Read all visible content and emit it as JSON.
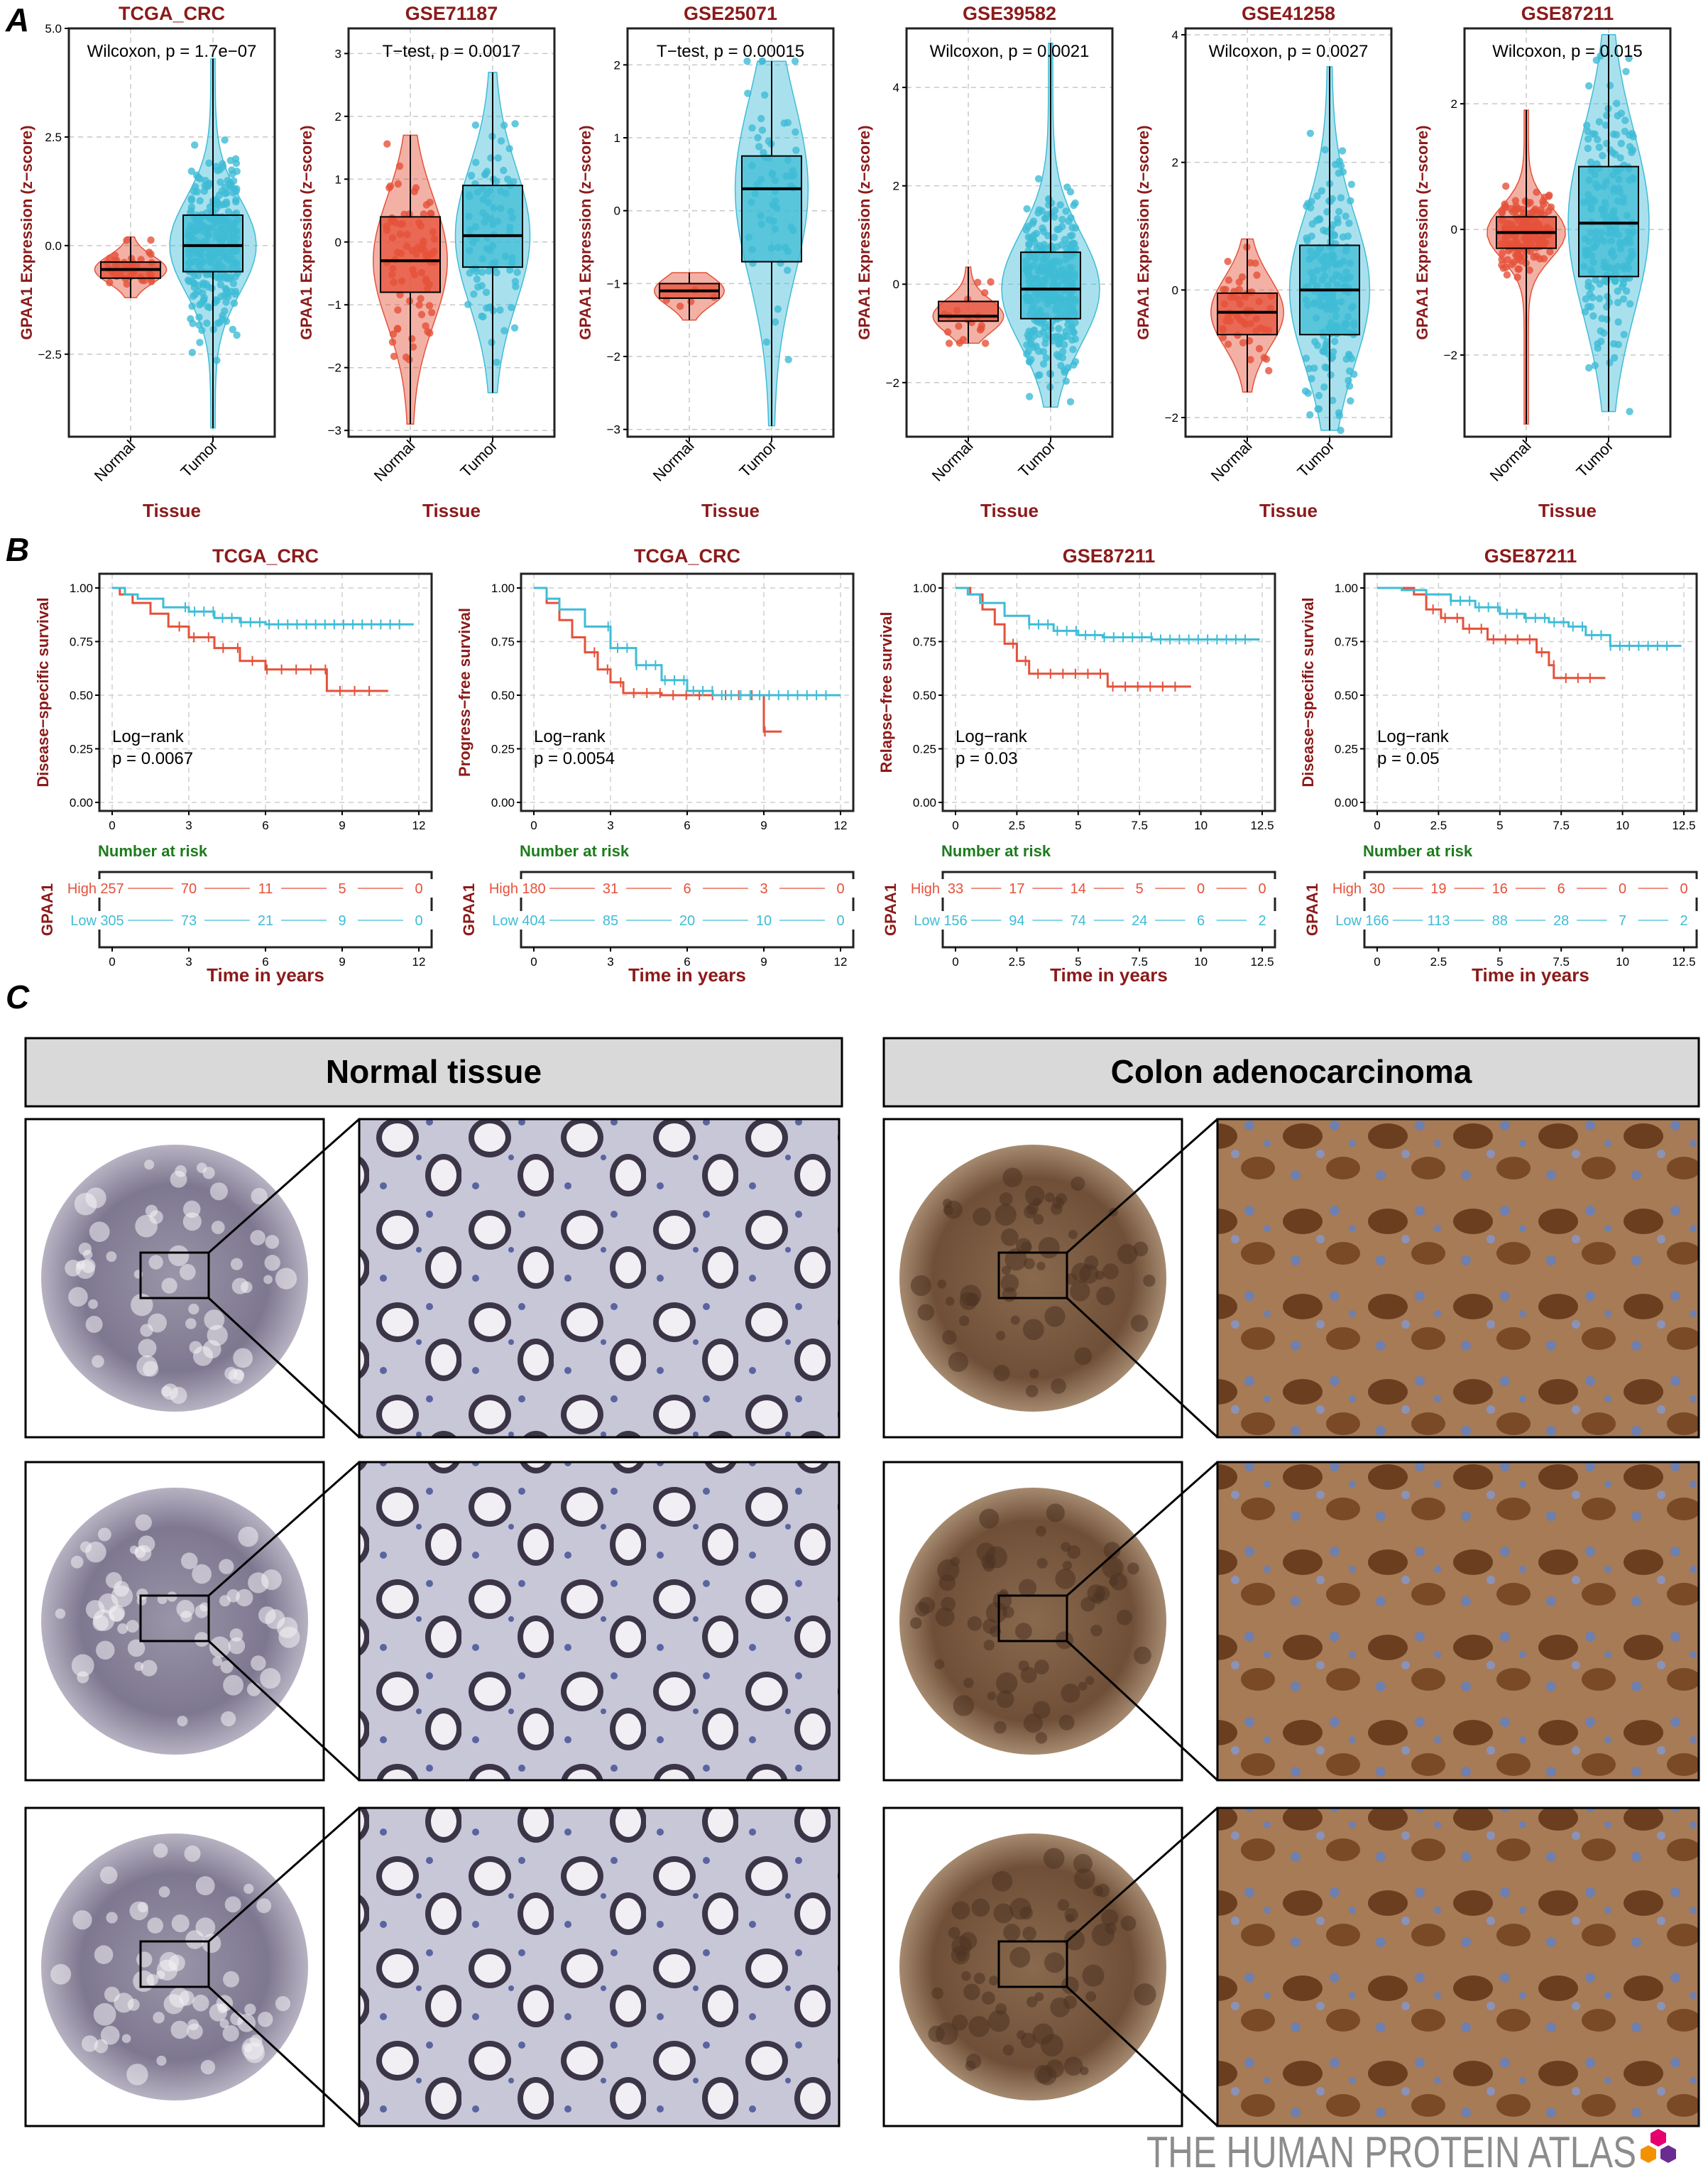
{
  "panel_labels": [
    "A",
    "B",
    "C"
  ],
  "colors": {
    "normal": "#e5513a",
    "tumor": "#3fbcd6",
    "high": "#e5513a",
    "low": "#3fbcd6",
    "title": "#8b1a1a",
    "risk": "#1e7b1e"
  },
  "chart_data": [
    {
      "type": "scatter",
      "subtype": "violin-box-jitter",
      "title": "TCGA_CRC",
      "test_label": "Wilcoxon, p = 1.7e−07",
      "xlabel": "Tissue",
      "ylabel": "GPAA1 Expression (z−score)",
      "categories": [
        "Normal",
        "Tumor"
      ],
      "ylim": [
        -4.4,
        5.0
      ],
      "yticks": [
        5.0,
        2.5,
        0.0,
        -2.5
      ],
      "ytick_labels": [
        "5.0",
        "2.5",
        "0.0",
        "−2.5"
      ],
      "groups": [
        {
          "name": "Normal",
          "median": -0.55,
          "q1": -0.75,
          "q3": -0.38,
          "min": -1.2,
          "max": 0.2,
          "n": 40
        },
        {
          "name": "Tumor",
          "median": 0.0,
          "q1": -0.6,
          "q3": 0.7,
          "min": -4.2,
          "max": 4.3,
          "n": 300
        }
      ]
    },
    {
      "type": "scatter",
      "subtype": "violin-box-jitter",
      "title": "GSE71187",
      "test_label": "T−test, p = 0.0017",
      "xlabel": "Tissue",
      "ylabel": "GPAA1 Expression (z−score)",
      "categories": [
        "Normal",
        "Tumor"
      ],
      "ylim": [
        -3.1,
        3.4
      ],
      "yticks": [
        3,
        2,
        1,
        0,
        -1,
        -2,
        -3
      ],
      "ytick_labels": [
        "3",
        "2",
        "1",
        "0",
        "−1",
        "−2",
        "−3"
      ],
      "groups": [
        {
          "name": "Normal",
          "median": -0.3,
          "q1": -0.8,
          "q3": 0.4,
          "min": -2.9,
          "max": 1.7,
          "n": 80
        },
        {
          "name": "Tumor",
          "median": 0.1,
          "q1": -0.4,
          "q3": 0.9,
          "min": -2.4,
          "max": 2.7,
          "n": 90
        }
      ]
    },
    {
      "type": "scatter",
      "subtype": "violin-box-jitter",
      "title": "GSE25071",
      "test_label": "T−test, p = 0.00015",
      "xlabel": "Tissue",
      "ylabel": "GPAA1 Expression (z−score)",
      "categories": [
        "Normal",
        "Tumor"
      ],
      "ylim": [
        -3.1,
        2.5
      ],
      "yticks": [
        2,
        1,
        0,
        -1,
        -2,
        -3
      ],
      "ytick_labels": [
        "2",
        "1",
        "0",
        "−1",
        "−2",
        "−3"
      ],
      "groups": [
        {
          "name": "Normal",
          "median": -1.1,
          "q1": -1.2,
          "q3": -1.0,
          "min": -1.5,
          "max": -0.85,
          "n": 5
        },
        {
          "name": "Tumor",
          "median": 0.3,
          "q1": -0.7,
          "q3": 0.75,
          "min": -2.95,
          "max": 2.05,
          "n": 60
        }
      ]
    },
    {
      "type": "scatter",
      "subtype": "violin-box-jitter",
      "title": "GSE39582",
      "test_label": "Wilcoxon, p = 0.0021",
      "xlabel": "Tissue",
      "ylabel": "GPAA1 Expression (z−score)",
      "categories": [
        "Normal",
        "Tumor"
      ],
      "ylim": [
        -3.1,
        5.2
      ],
      "yticks": [
        4,
        2,
        0,
        -2
      ],
      "ytick_labels": [
        "4",
        "2",
        "0",
        "−2"
      ],
      "groups": [
        {
          "name": "Normal",
          "median": -0.65,
          "q1": -0.75,
          "q3": -0.35,
          "min": -1.2,
          "max": 0.35,
          "n": 19
        },
        {
          "name": "Tumor",
          "median": -0.1,
          "q1": -0.7,
          "q3": 0.65,
          "min": -2.5,
          "max": 4.9,
          "n": 550
        }
      ]
    },
    {
      "type": "scatter",
      "subtype": "violin-box-jitter",
      "title": "GSE41258",
      "test_label": "Wilcoxon, p = 0.0027",
      "xlabel": "Tissue",
      "ylabel": "GPAA1 Expression (z−score)",
      "categories": [
        "Normal",
        "Tumor"
      ],
      "ylim": [
        -2.3,
        4.1
      ],
      "yticks": [
        4,
        2,
        0,
        -2
      ],
      "ytick_labels": [
        "4",
        "2",
        "0",
        "−2"
      ],
      "groups": [
        {
          "name": "Normal",
          "median": -0.35,
          "q1": -0.7,
          "q3": -0.05,
          "min": -1.6,
          "max": 0.8,
          "n": 54
        },
        {
          "name": "Tumor",
          "median": 0.0,
          "q1": -0.7,
          "q3": 0.7,
          "min": -2.2,
          "max": 3.5,
          "n": 186
        }
      ]
    },
    {
      "type": "scatter",
      "subtype": "violin-box-jitter",
      "title": "GSE87211",
      "test_label": "Wilcoxon, p = 0.015",
      "xlabel": "Tissue",
      "ylabel": "GPAA1 Expression (z−score)",
      "categories": [
        "Normal",
        "Tumor"
      ],
      "ylim": [
        -3.3,
        3.2
      ],
      "yticks": [
        2,
        0,
        -2
      ],
      "ytick_labels": [
        "2",
        "0",
        "−2"
      ],
      "groups": [
        {
          "name": "Normal",
          "median": -0.05,
          "q1": -0.3,
          "q3": 0.2,
          "min": -3.1,
          "max": 1.9,
          "n": 160
        },
        {
          "name": "Tumor",
          "median": 0.1,
          "q1": -0.75,
          "q3": 1.0,
          "min": -2.9,
          "max": 3.1,
          "n": 200
        }
      ]
    },
    {
      "type": "line",
      "subtype": "kaplan-meier",
      "title": "TCGA_CRC",
      "ylabel": "Disease−specific survival",
      "xlabel": "Time in years",
      "xlim": [
        0,
        12
      ],
      "xticks": [
        0,
        3,
        6,
        9,
        12
      ],
      "ylim": [
        0,
        1
      ],
      "yticks": [
        "0.00",
        "0.25",
        "0.50",
        "0.75",
        "1.00"
      ],
      "logrank": "Log−rank",
      "pvalue": "p = 0.0067",
      "risk_title": "Number at risk",
      "strata_title": "GPAA1",
      "strata": [
        {
          "name": "High",
          "at_risk": [
            257,
            70,
            11,
            5,
            0
          ],
          "curve": [
            [
              0,
              1.0
            ],
            [
              0.3,
              0.97
            ],
            [
              0.8,
              0.93
            ],
            [
              1.5,
              0.88
            ],
            [
              2.2,
              0.82
            ],
            [
              3,
              0.77
            ],
            [
              4,
              0.72
            ],
            [
              5,
              0.66
            ],
            [
              6,
              0.62
            ],
            [
              8,
              0.62
            ],
            [
              8.4,
              0.52
            ],
            [
              10.8,
              0.52
            ]
          ]
        },
        {
          "name": "Low",
          "at_risk": [
            305,
            73,
            21,
            9,
            0
          ],
          "curve": [
            [
              0,
              1.0
            ],
            [
              0.5,
              0.97
            ],
            [
              1,
              0.95
            ],
            [
              2,
              0.91
            ],
            [
              3,
              0.89
            ],
            [
              4,
              0.86
            ],
            [
              5,
              0.84
            ],
            [
              6,
              0.83
            ],
            [
              11.8,
              0.83
            ]
          ]
        }
      ]
    },
    {
      "type": "line",
      "subtype": "kaplan-meier",
      "title": "TCGA_CRC",
      "ylabel": "Progress−free survival",
      "xlabel": "Time in years",
      "xlim": [
        0,
        12
      ],
      "xticks": [
        0,
        3,
        6,
        9,
        12
      ],
      "ylim": [
        0,
        1
      ],
      "yticks": [
        "0.00",
        "0.25",
        "0.50",
        "0.75",
        "1.00"
      ],
      "logrank": "Log−rank",
      "pvalue": "p = 0.0054",
      "risk_title": "Number at risk",
      "strata_title": "GPAA1",
      "strata": [
        {
          "name": "High",
          "at_risk": [
            180,
            31,
            6,
            3,
            0
          ],
          "curve": [
            [
              0,
              1.0
            ],
            [
              0.5,
              0.93
            ],
            [
              1,
              0.85
            ],
            [
              1.5,
              0.77
            ],
            [
              2,
              0.7
            ],
            [
              2.5,
              0.62
            ],
            [
              3,
              0.56
            ],
            [
              3.5,
              0.51
            ],
            [
              5,
              0.5
            ],
            [
              9,
              0.5
            ],
            [
              9,
              0.33
            ],
            [
              9.7,
              0.33
            ]
          ]
        },
        {
          "name": "Low",
          "at_risk": [
            404,
            85,
            20,
            10,
            0
          ],
          "curve": [
            [
              0,
              1.0
            ],
            [
              0.5,
              0.95
            ],
            [
              1,
              0.9
            ],
            [
              2,
              0.82
            ],
            [
              3,
              0.72
            ],
            [
              4,
              0.64
            ],
            [
              5,
              0.57
            ],
            [
              6,
              0.52
            ],
            [
              7,
              0.5
            ],
            [
              12,
              0.5
            ]
          ]
        }
      ]
    },
    {
      "type": "line",
      "subtype": "kaplan-meier",
      "title": "GSE87211",
      "ylabel": "Relapse−free survival",
      "xlabel": "Time in years",
      "xlim": [
        0,
        12.5
      ],
      "xticks": [
        0,
        2.5,
        5,
        7.5,
        10,
        12.5
      ],
      "ylim": [
        0,
        1
      ],
      "yticks": [
        "0.00",
        "0.25",
        "0.50",
        "0.75",
        "1.00"
      ],
      "logrank": "Log−rank",
      "pvalue": "p = 0.03",
      "risk_title": "Number at risk",
      "strata_title": "GPAA1",
      "strata": [
        {
          "name": "High",
          "at_risk": [
            33,
            17,
            14,
            5,
            0,
            0
          ],
          "curve": [
            [
              0,
              1.0
            ],
            [
              0.6,
              0.97
            ],
            [
              1.1,
              0.9
            ],
            [
              1.6,
              0.83
            ],
            [
              2,
              0.74
            ],
            [
              2.5,
              0.66
            ],
            [
              3,
              0.6
            ],
            [
              6,
              0.6
            ],
            [
              6.2,
              0.54
            ],
            [
              9.6,
              0.54
            ]
          ]
        },
        {
          "name": "Low",
          "at_risk": [
            156,
            94,
            74,
            24,
            6,
            2
          ],
          "curve": [
            [
              0,
              1.0
            ],
            [
              0.5,
              0.97
            ],
            [
              1,
              0.93
            ],
            [
              2,
              0.87
            ],
            [
              3,
              0.83
            ],
            [
              4,
              0.8
            ],
            [
              5,
              0.78
            ],
            [
              6,
              0.77
            ],
            [
              7,
              0.77
            ],
            [
              8,
              0.76
            ],
            [
              12.4,
              0.76
            ]
          ]
        }
      ]
    },
    {
      "type": "line",
      "subtype": "kaplan-meier",
      "title": "GSE87211",
      "ylabel": "Disease−specific survival",
      "xlabel": "Time in years",
      "xlim": [
        0,
        12.5
      ],
      "xticks": [
        0,
        2.5,
        5,
        7.5,
        10,
        12.5
      ],
      "ylim": [
        0,
        1
      ],
      "yticks": [
        "0.00",
        "0.25",
        "0.50",
        "0.75",
        "1.00"
      ],
      "logrank": "Log−rank",
      "pvalue": "p = 0.05",
      "risk_title": "Number at risk",
      "strata_title": "GPAA1",
      "strata": [
        {
          "name": "High",
          "at_risk": [
            30,
            19,
            16,
            6,
            0,
            0
          ],
          "curve": [
            [
              0,
              1.0
            ],
            [
              1.5,
              0.97
            ],
            [
              2,
              0.9
            ],
            [
              2.6,
              0.86
            ],
            [
              3.5,
              0.81
            ],
            [
              4.5,
              0.76
            ],
            [
              6,
              0.76
            ],
            [
              6.5,
              0.7
            ],
            [
              7,
              0.64
            ],
            [
              7.2,
              0.58
            ],
            [
              9.3,
              0.58
            ]
          ]
        },
        {
          "name": "Low",
          "at_risk": [
            166,
            113,
            88,
            28,
            7,
            2
          ],
          "curve": [
            [
              0,
              1.0
            ],
            [
              1,
              0.99
            ],
            [
              2,
              0.97
            ],
            [
              3,
              0.94
            ],
            [
              4,
              0.91
            ],
            [
              5,
              0.88
            ],
            [
              6,
              0.86
            ],
            [
              7,
              0.84
            ],
            [
              7.8,
              0.82
            ],
            [
              8.5,
              0.78
            ],
            [
              9.5,
              0.73
            ],
            [
              12.4,
              0.73
            ]
          ]
        }
      ]
    }
  ],
  "ihc": {
    "normal_header": "Normal tissue",
    "tumor_header": "Colon adenocarcinoma"
  },
  "hpa_logo": "THE HUMAN PROTEIN ATLAS"
}
